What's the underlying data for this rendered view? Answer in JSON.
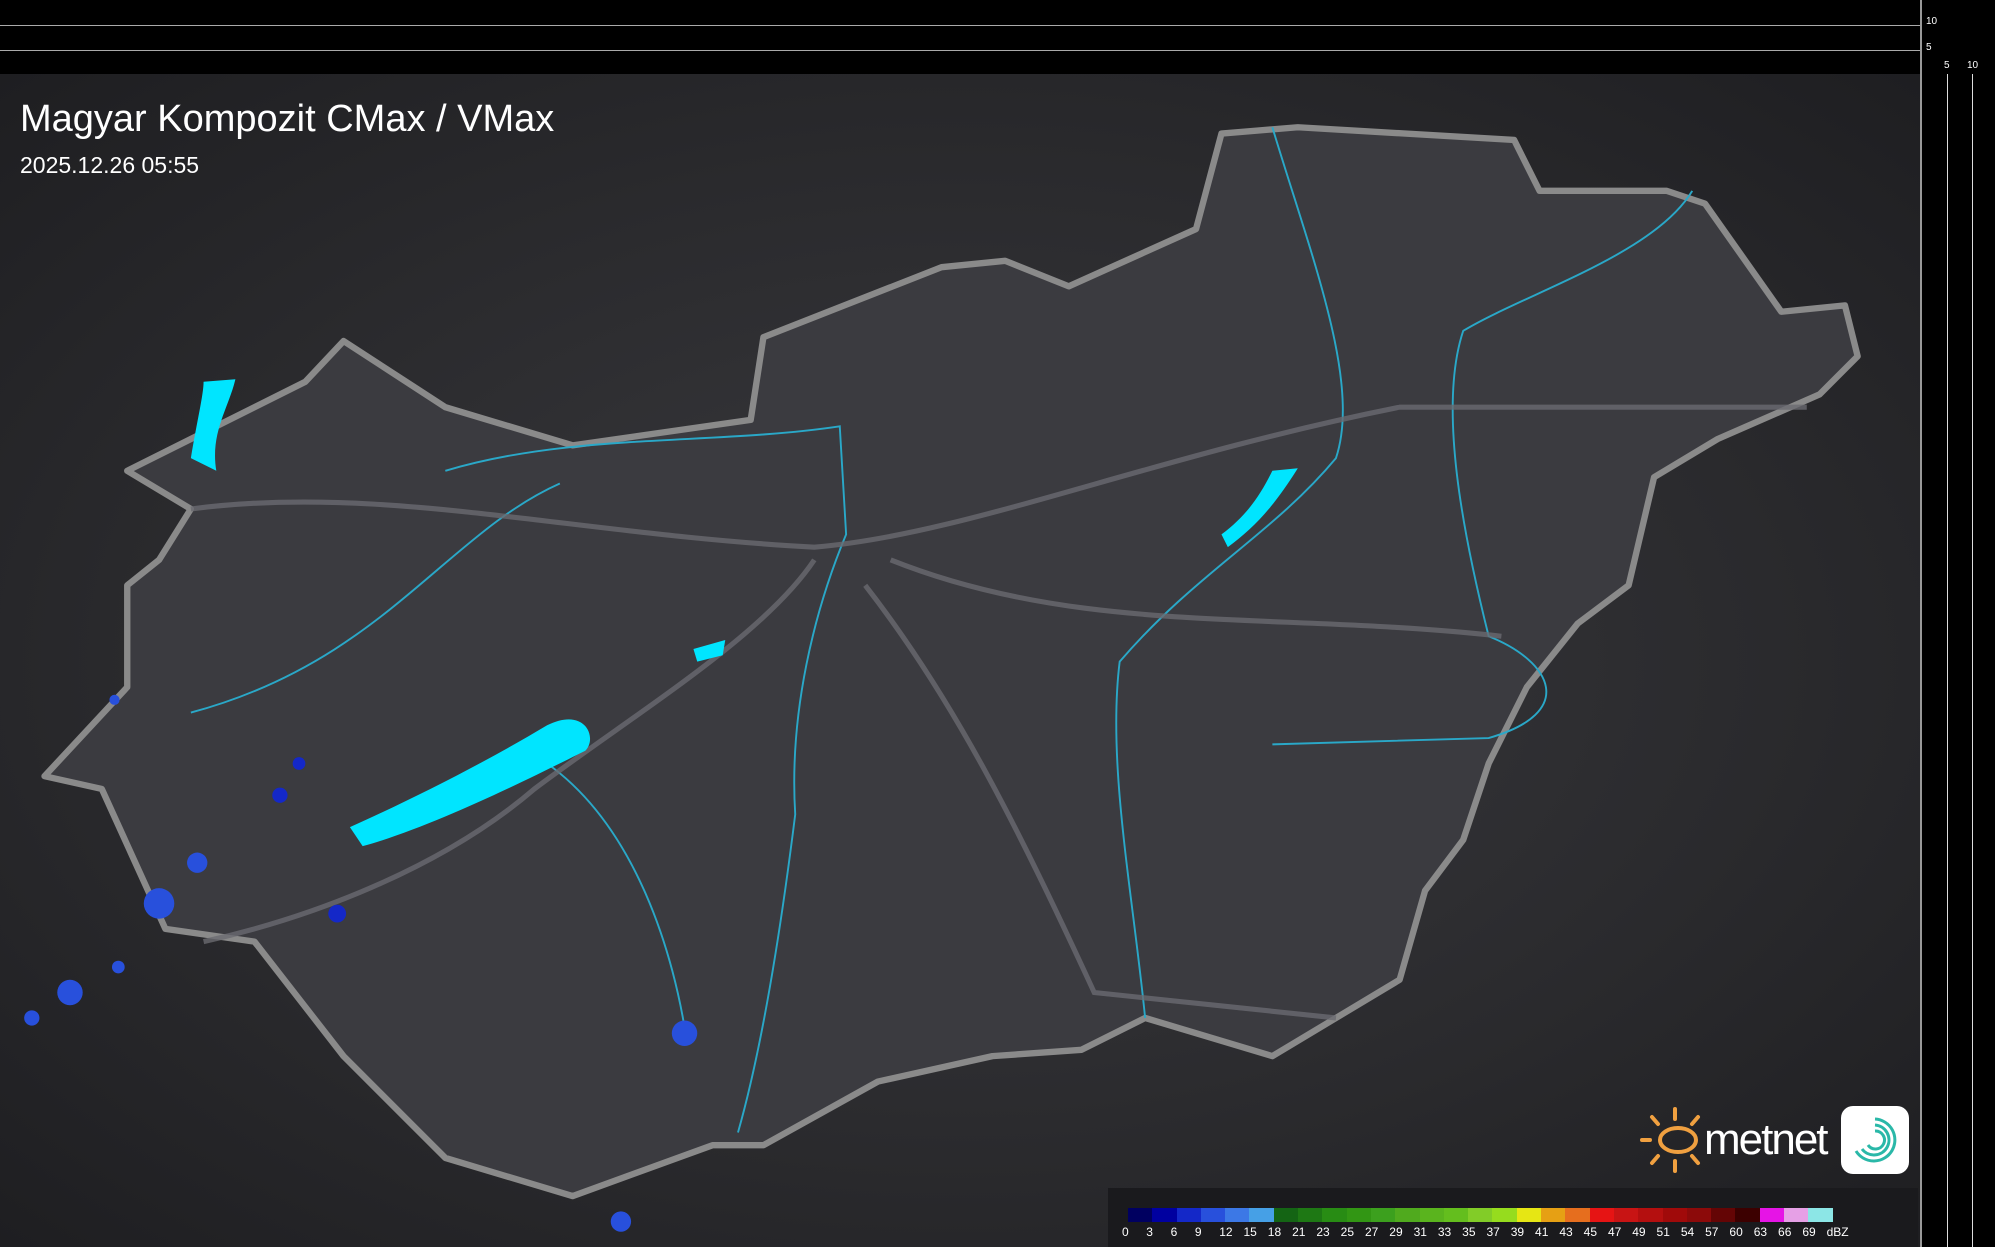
{
  "header": {
    "title": "Magyar Kompozit CMax / VMax",
    "datetime": "2025.12.26 05:55"
  },
  "side_profile": {
    "top_ticks": [
      "10",
      "5"
    ],
    "right_ticks": [
      "5",
      "10"
    ]
  },
  "legend": {
    "unit": "dBZ",
    "labels": [
      "0",
      "3",
      "6",
      "9",
      "12",
      "15",
      "18",
      "21",
      "23",
      "25",
      "27",
      "29",
      "31",
      "33",
      "35",
      "37",
      "39",
      "41",
      "43",
      "45",
      "47",
      "49",
      "51",
      "54",
      "57",
      "60",
      "63",
      "66",
      "69"
    ],
    "colors": [
      "#000060",
      "#0000a0",
      "#1428c8",
      "#2850dc",
      "#3c78e6",
      "#46a0e6",
      "#146414",
      "#1e7814",
      "#288c14",
      "#329614",
      "#3ca01e",
      "#50aa1e",
      "#5ab41e",
      "#64be1e",
      "#82cc28",
      "#96dc1e",
      "#e6e614",
      "#e6a014",
      "#e66e1e",
      "#e61414",
      "#c81414",
      "#b40f0f",
      "#a00a0a",
      "#8c0a0a",
      "#640505",
      "#3c0000",
      "#e614e6",
      "#e6a0e6",
      "#8ce6e6"
    ]
  },
  "branding": {
    "name": "metnet"
  },
  "colors": {
    "lakes": "#00e5ff",
    "rivers": "#2aa8c8",
    "border": "#888888",
    "echo": "#2850dc"
  }
}
